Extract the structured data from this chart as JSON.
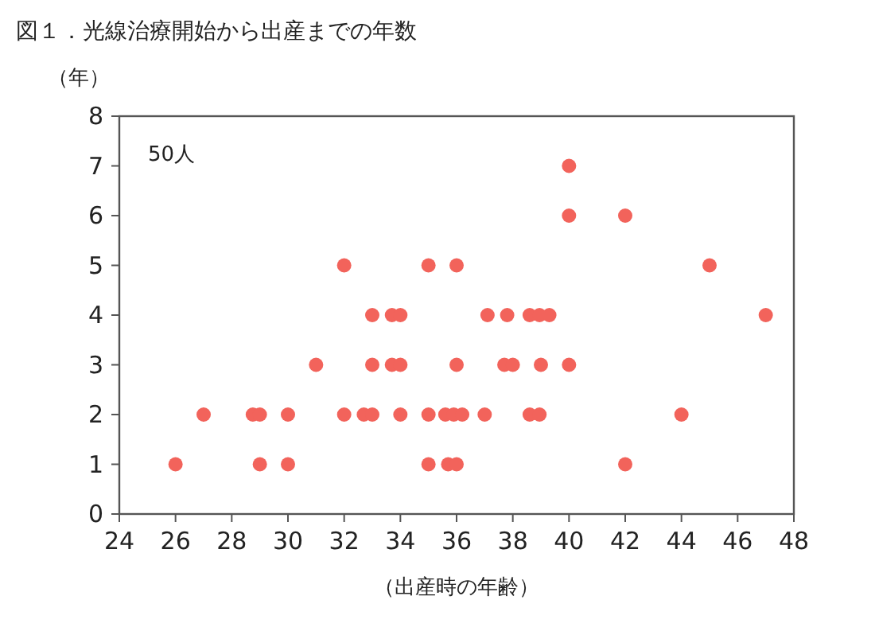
{
  "chart_data": {
    "type": "scatter",
    "title": "図１．光線治療開始から出産までの年数",
    "xlabel": "（出産時の年齢）",
    "ylabel": "（年）",
    "annotations": [
      "50人"
    ],
    "x": [
      26,
      29,
      30,
      35,
      35.7,
      36,
      42,
      27,
      28.75,
      29,
      30,
      32,
      32.7,
      33,
      34,
      35,
      35.6,
      35.9,
      36.2,
      37,
      38.6,
      38.95,
      44,
      31,
      33,
      33.7,
      34,
      36,
      37.7,
      38,
      39,
      40,
      33,
      33.7,
      34,
      37.1,
      37.8,
      38.6,
      38.95,
      39.3,
      47,
      32,
      35,
      36,
      45,
      40,
      42,
      40
    ],
    "values": [
      1,
      1,
      1,
      1,
      1,
      1,
      1,
      2,
      2,
      2,
      2,
      2,
      2,
      2,
      2,
      2,
      2,
      2,
      2,
      2,
      2,
      2,
      2,
      3,
      3,
      3,
      3,
      3,
      3,
      3,
      3,
      3,
      4,
      4,
      4,
      4,
      4,
      4,
      4,
      4,
      4,
      5,
      5,
      5,
      5,
      6,
      6,
      7
    ],
    "color": "#f2635b",
    "marker": "circle",
    "xlim": [
      24,
      48
    ],
    "xticks": [
      24,
      26,
      28,
      30,
      32,
      34,
      36,
      38,
      40,
      42,
      44,
      46,
      48
    ],
    "ylim": [
      0,
      8
    ],
    "yticks": [
      0,
      1,
      2,
      3,
      4,
      5,
      6,
      7,
      8
    ]
  }
}
